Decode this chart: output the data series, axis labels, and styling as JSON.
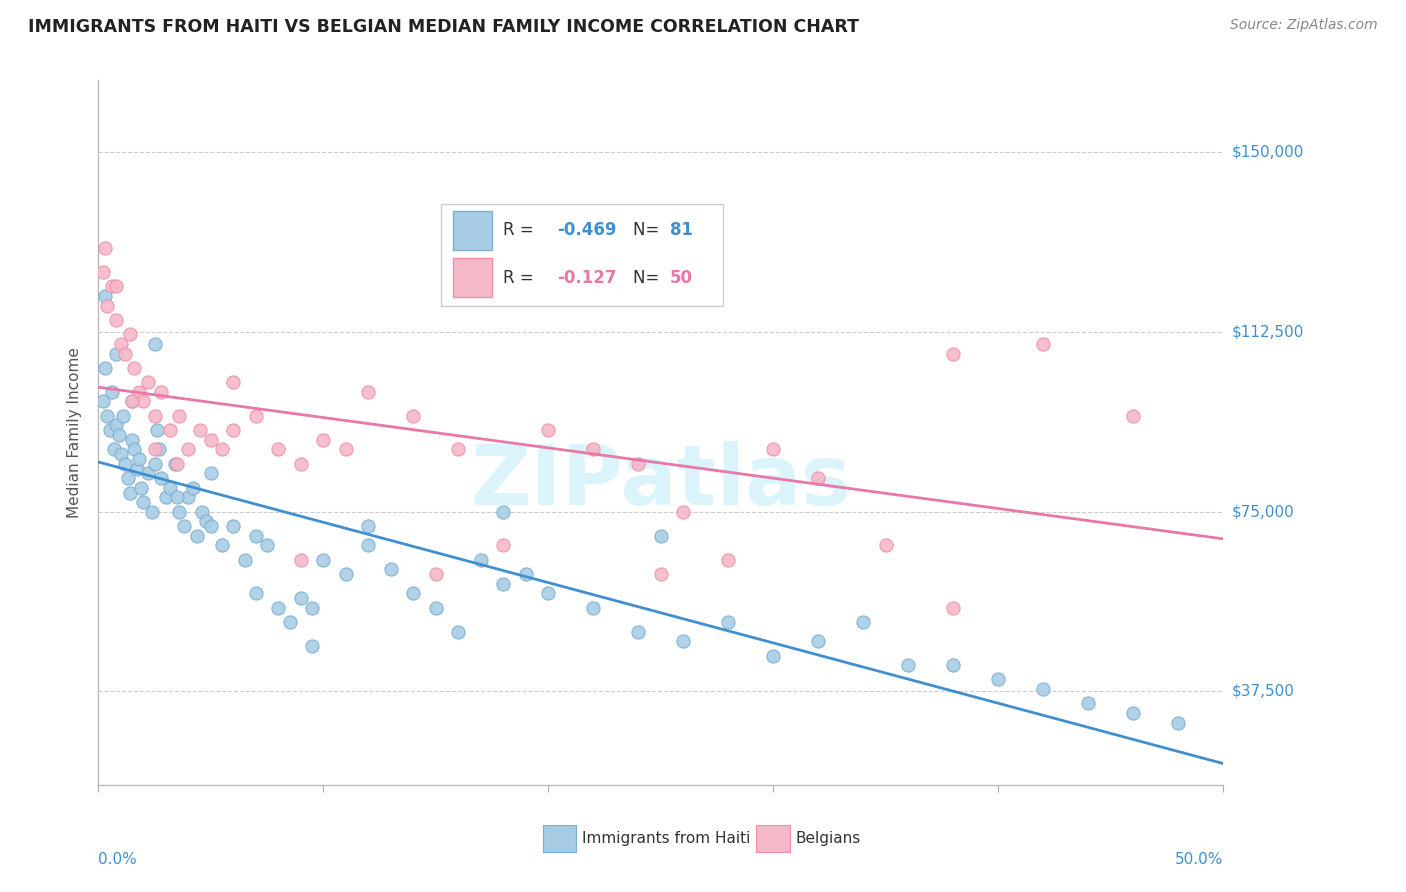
{
  "title": "IMMIGRANTS FROM HAITI VS BELGIAN MEDIAN FAMILY INCOME CORRELATION CHART",
  "source": "Source: ZipAtlas.com",
  "ylabel": "Median Family Income",
  "yticks": [
    37500,
    75000,
    112500,
    150000
  ],
  "ytick_labels": [
    "$37,500",
    "$75,000",
    "$112,500",
    "$150,000"
  ],
  "xlim": [
    0.0,
    0.5
  ],
  "ylim": [
    18000,
    165000
  ],
  "watermark": "ZIPatlas",
  "legend_haiti_r": "-0.469",
  "legend_haiti_n": "81",
  "legend_belgian_r": "-0.127",
  "legend_belgian_n": "50",
  "haiti_color": "#a8cce4",
  "belgian_color": "#f4b8c8",
  "haiti_edge_color": "#7aafd4",
  "belgian_edge_color": "#f090a8",
  "haiti_line_color": "#4090d0",
  "belgian_line_color": "#e878a8",
  "label_color": "#4090d0",
  "haiti_scatter_x": [
    0.002,
    0.003,
    0.004,
    0.005,
    0.006,
    0.007,
    0.008,
    0.009,
    0.01,
    0.011,
    0.012,
    0.013,
    0.014,
    0.015,
    0.016,
    0.017,
    0.018,
    0.019,
    0.02,
    0.022,
    0.024,
    0.025,
    0.026,
    0.027,
    0.028,
    0.03,
    0.032,
    0.034,
    0.036,
    0.038,
    0.04,
    0.042,
    0.044,
    0.046,
    0.048,
    0.05,
    0.055,
    0.06,
    0.065,
    0.07,
    0.075,
    0.08,
    0.085,
    0.09,
    0.095,
    0.1,
    0.11,
    0.12,
    0.13,
    0.14,
    0.15,
    0.16,
    0.17,
    0.18,
    0.19,
    0.2,
    0.22,
    0.24,
    0.26,
    0.28,
    0.3,
    0.32,
    0.34,
    0.36,
    0.38,
    0.4,
    0.42,
    0.44,
    0.46,
    0.48,
    0.003,
    0.008,
    0.015,
    0.025,
    0.035,
    0.05,
    0.07,
    0.095,
    0.12,
    0.18,
    0.25
  ],
  "haiti_scatter_y": [
    98000,
    105000,
    95000,
    92000,
    100000,
    88000,
    93000,
    91000,
    87000,
    95000,
    85000,
    82000,
    79000,
    90000,
    88000,
    84000,
    86000,
    80000,
    77000,
    83000,
    75000,
    85000,
    92000,
    88000,
    82000,
    78000,
    80000,
    85000,
    75000,
    72000,
    78000,
    80000,
    70000,
    75000,
    73000,
    83000,
    68000,
    72000,
    65000,
    70000,
    68000,
    55000,
    52000,
    57000,
    55000,
    65000,
    62000,
    68000,
    63000,
    58000,
    55000,
    50000,
    65000,
    60000,
    62000,
    58000,
    55000,
    50000,
    48000,
    52000,
    45000,
    48000,
    52000,
    43000,
    43000,
    40000,
    38000,
    35000,
    33000,
    31000,
    120000,
    108000,
    98000,
    110000,
    78000,
    72000,
    58000,
    47000,
    72000,
    75000,
    70000
  ],
  "belgian_scatter_x": [
    0.002,
    0.004,
    0.006,
    0.008,
    0.01,
    0.012,
    0.014,
    0.016,
    0.018,
    0.02,
    0.022,
    0.025,
    0.028,
    0.032,
    0.036,
    0.04,
    0.045,
    0.05,
    0.055,
    0.06,
    0.07,
    0.08,
    0.09,
    0.1,
    0.11,
    0.12,
    0.14,
    0.16,
    0.18,
    0.2,
    0.22,
    0.24,
    0.26,
    0.28,
    0.3,
    0.32,
    0.35,
    0.38,
    0.42,
    0.46,
    0.003,
    0.008,
    0.015,
    0.025,
    0.035,
    0.06,
    0.09,
    0.15,
    0.25,
    0.38
  ],
  "belgian_scatter_y": [
    125000,
    118000,
    122000,
    115000,
    110000,
    108000,
    112000,
    105000,
    100000,
    98000,
    102000,
    95000,
    100000,
    92000,
    95000,
    88000,
    92000,
    90000,
    88000,
    102000,
    95000,
    88000,
    85000,
    90000,
    88000,
    100000,
    95000,
    88000,
    68000,
    92000,
    88000,
    85000,
    75000,
    65000,
    88000,
    82000,
    68000,
    108000,
    110000,
    95000,
    130000,
    122000,
    98000,
    88000,
    85000,
    92000,
    65000,
    62000,
    62000,
    55000
  ],
  "background_color": "#ffffff",
  "grid_color": "#cccccc"
}
